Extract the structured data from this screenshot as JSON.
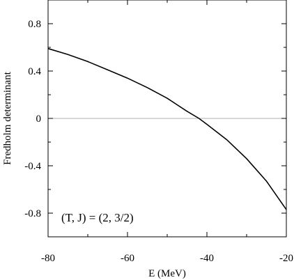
{
  "chart_data": {
    "type": "line",
    "title": "",
    "xlabel": "E (MeV)",
    "ylabel": "Fredholm determinant",
    "xlim": [
      -80,
      -20
    ],
    "ylim": [
      -1.0,
      1.0
    ],
    "x_ticks": [
      -80,
      -60,
      -40,
      -20
    ],
    "x_tick_labels": [
      "-80",
      "-60",
      "-40",
      "-20"
    ],
    "y_ticks": [
      -0.8,
      -0.4,
      0,
      0.4,
      0.8
    ],
    "y_tick_labels": [
      "-0.8",
      "-0.4",
      "0",
      "0.4",
      "0.8"
    ],
    "grid": false,
    "reference_line": {
      "y": 0,
      "color": "#b0b0b0"
    },
    "series": [
      {
        "color": "#000000",
        "x": [
          -80,
          -75,
          -70,
          -65,
          -60,
          -55,
          -50,
          -45,
          -42,
          -40,
          -35,
          -30,
          -25,
          -20
        ],
        "y": [
          0.59,
          0.54,
          0.48,
          0.41,
          0.34,
          0.26,
          0.17,
          0.06,
          0.0,
          -0.05,
          -0.18,
          -0.34,
          -0.53,
          -0.77
        ]
      }
    ],
    "annotation": "(T, J) = (2, 3/2)"
  }
}
